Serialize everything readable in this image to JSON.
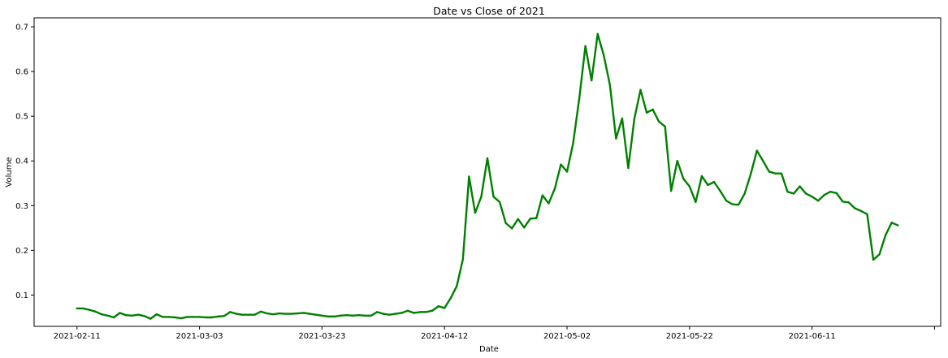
{
  "chart_data": {
    "type": "line",
    "title": "Date vs Close of 2021",
    "xlabel": "Date",
    "ylabel": "Volume",
    "x_tick_labels": [
      "2021-02-11",
      "2021-03-03",
      "2021-03-23",
      "2021-04-12",
      "2021-05-02",
      "2021-05-22",
      "2021-06-11"
    ],
    "y_tick_labels": [
      "0.1",
      "0.2",
      "0.3",
      "0.4",
      "0.5",
      "0.6",
      "0.7"
    ],
    "y_ticks": [
      0.1,
      0.2,
      0.3,
      0.4,
      0.5,
      0.6,
      0.7
    ],
    "xlim": [
      "2021-02-04",
      "2021-07-02"
    ],
    "ylim": [
      0.03,
      0.72
    ],
    "grid": false,
    "line_color": "#008000",
    "series": [
      {
        "points": [
          [
            "2021-02-11",
            0.07
          ],
          [
            "2021-02-12",
            0.07
          ],
          [
            "2021-02-13",
            0.067
          ],
          [
            "2021-02-14",
            0.063
          ],
          [
            "2021-02-15",
            0.057
          ],
          [
            "2021-02-16",
            0.054
          ],
          [
            "2021-02-17",
            0.05
          ],
          [
            "2021-02-18",
            0.06
          ],
          [
            "2021-02-19",
            0.055
          ],
          [
            "2021-02-20",
            0.054
          ],
          [
            "2021-02-21",
            0.056
          ],
          [
            "2021-02-22",
            0.053
          ],
          [
            "2021-02-23",
            0.047
          ],
          [
            "2021-02-24",
            0.057
          ],
          [
            "2021-02-25",
            0.051
          ],
          [
            "2021-02-26",
            0.051
          ],
          [
            "2021-02-27",
            0.05
          ],
          [
            "2021-02-28",
            0.048
          ],
          [
            "2021-03-01",
            0.051
          ],
          [
            "2021-03-02",
            0.051
          ],
          [
            "2021-03-03",
            0.051
          ],
          [
            "2021-03-04",
            0.05
          ],
          [
            "2021-03-05",
            0.05
          ],
          [
            "2021-03-06",
            0.052
          ],
          [
            "2021-03-07",
            0.053
          ],
          [
            "2021-03-08",
            0.062
          ],
          [
            "2021-03-09",
            0.058
          ],
          [
            "2021-03-10",
            0.056
          ],
          [
            "2021-03-11",
            0.056
          ],
          [
            "2021-03-12",
            0.056
          ],
          [
            "2021-03-13",
            0.063
          ],
          [
            "2021-03-14",
            0.059
          ],
          [
            "2021-03-15",
            0.057
          ],
          [
            "2021-03-16",
            0.059
          ],
          [
            "2021-03-17",
            0.058
          ],
          [
            "2021-03-18",
            0.058
          ],
          [
            "2021-03-19",
            0.059
          ],
          [
            "2021-03-20",
            0.06
          ],
          [
            "2021-03-21",
            0.058
          ],
          [
            "2021-03-22",
            0.056
          ],
          [
            "2021-03-23",
            0.054
          ],
          [
            "2021-03-24",
            0.052
          ],
          [
            "2021-03-25",
            0.052
          ],
          [
            "2021-03-26",
            0.054
          ],
          [
            "2021-03-27",
            0.055
          ],
          [
            "2021-03-28",
            0.054
          ],
          [
            "2021-03-29",
            0.055
          ],
          [
            "2021-03-30",
            0.054
          ],
          [
            "2021-03-31",
            0.054
          ],
          [
            "2021-04-01",
            0.062
          ],
          [
            "2021-04-02",
            0.058
          ],
          [
            "2021-04-03",
            0.056
          ],
          [
            "2021-04-04",
            0.058
          ],
          [
            "2021-04-05",
            0.06
          ],
          [
            "2021-04-06",
            0.065
          ],
          [
            "2021-04-07",
            0.06
          ],
          [
            "2021-04-08",
            0.062
          ],
          [
            "2021-04-09",
            0.062
          ],
          [
            "2021-04-10",
            0.065
          ],
          [
            "2021-04-11",
            0.075
          ],
          [
            "2021-04-12",
            0.071
          ],
          [
            "2021-04-13",
            0.093
          ],
          [
            "2021-04-14",
            0.12
          ],
          [
            "2021-04-15",
            0.18
          ],
          [
            "2021-04-16",
            0.365
          ],
          [
            "2021-04-17",
            0.284
          ],
          [
            "2021-04-18",
            0.32
          ],
          [
            "2021-04-19",
            0.406
          ],
          [
            "2021-04-20",
            0.32
          ],
          [
            "2021-04-21",
            0.308
          ],
          [
            "2021-04-22",
            0.261
          ],
          [
            "2021-04-23",
            0.249
          ],
          [
            "2021-04-24",
            0.27
          ],
          [
            "2021-04-25",
            0.251
          ],
          [
            "2021-04-26",
            0.271
          ],
          [
            "2021-04-27",
            0.272
          ],
          [
            "2021-04-28",
            0.323
          ],
          [
            "2021-04-29",
            0.305
          ],
          [
            "2021-04-30",
            0.338
          ],
          [
            "2021-05-01",
            0.392
          ],
          [
            "2021-05-02",
            0.376
          ],
          [
            "2021-05-03",
            0.44
          ],
          [
            "2021-05-04",
            0.54
          ],
          [
            "2021-05-05",
            0.657
          ],
          [
            "2021-05-06",
            0.58
          ],
          [
            "2021-05-07",
            0.684
          ],
          [
            "2021-05-08",
            0.636
          ],
          [
            "2021-05-09",
            0.57
          ],
          [
            "2021-05-10",
            0.45
          ],
          [
            "2021-05-11",
            0.495
          ],
          [
            "2021-05-12",
            0.384
          ],
          [
            "2021-05-13",
            0.495
          ],
          [
            "2021-05-14",
            0.559
          ],
          [
            "2021-05-15",
            0.508
          ],
          [
            "2021-05-16",
            0.515
          ],
          [
            "2021-05-17",
            0.488
          ],
          [
            "2021-05-18",
            0.477
          ],
          [
            "2021-05-19",
            0.333
          ],
          [
            "2021-05-20",
            0.4
          ],
          [
            "2021-05-21",
            0.36
          ],
          [
            "2021-05-22",
            0.343
          ],
          [
            "2021-05-23",
            0.308
          ],
          [
            "2021-05-24",
            0.366
          ],
          [
            "2021-05-25",
            0.346
          ],
          [
            "2021-05-26",
            0.353
          ],
          [
            "2021-05-27",
            0.333
          ],
          [
            "2021-05-28",
            0.311
          ],
          [
            "2021-05-29",
            0.303
          ],
          [
            "2021-05-30",
            0.302
          ],
          [
            "2021-05-31",
            0.327
          ],
          [
            "2021-06-01",
            0.371
          ],
          [
            "2021-06-02",
            0.423
          ],
          [
            "2021-06-03",
            0.4
          ],
          [
            "2021-06-04",
            0.376
          ],
          [
            "2021-06-05",
            0.372
          ],
          [
            "2021-06-06",
            0.372
          ],
          [
            "2021-06-07",
            0.331
          ],
          [
            "2021-06-08",
            0.327
          ],
          [
            "2021-06-09",
            0.343
          ],
          [
            "2021-06-10",
            0.327
          ],
          [
            "2021-06-11",
            0.32
          ],
          [
            "2021-06-12",
            0.311
          ],
          [
            "2021-06-13",
            0.324
          ],
          [
            "2021-06-14",
            0.331
          ],
          [
            "2021-06-15",
            0.328
          ],
          [
            "2021-06-16",
            0.309
          ],
          [
            "2021-06-17",
            0.307
          ],
          [
            "2021-06-18",
            0.294
          ],
          [
            "2021-06-19",
            0.288
          ],
          [
            "2021-06-20",
            0.281
          ],
          [
            "2021-06-21",
            0.179
          ],
          [
            "2021-06-22",
            0.191
          ],
          [
            "2021-06-23",
            0.234
          ],
          [
            "2021-06-24",
            0.262
          ],
          [
            "2021-06-25",
            0.256
          ]
        ]
      }
    ]
  }
}
